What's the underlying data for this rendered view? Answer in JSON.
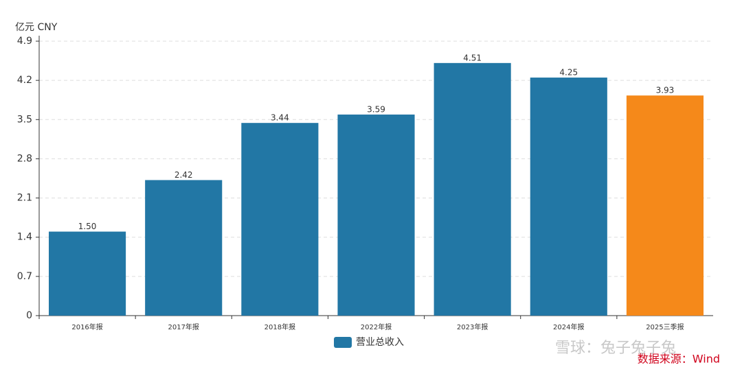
{
  "chart_data": {
    "type": "bar",
    "y_unit": "亿元  CNY",
    "categories": [
      "2016年报",
      "2017年报",
      "2018年报",
      "2022年报",
      "2023年报",
      "2024年报",
      "2025三季报"
    ],
    "series": [
      {
        "name": "营业总收入",
        "color": "#2277a5",
        "values": [
          1.5,
          2.42,
          3.44,
          3.59,
          4.51,
          4.25,
          3.93
        ],
        "value_labels": [
          "1.50",
          "2.42",
          "3.44",
          "3.59",
          "4.51",
          "4.25",
          "3.93"
        ],
        "colors": [
          "#2277a5",
          "#2277a5",
          "#2277a5",
          "#2277a5",
          "#2277a5",
          "#2277a5",
          "#f5891a"
        ]
      }
    ],
    "ylim": [
      0,
      4.9
    ],
    "yticks": [
      0,
      0.7,
      1.4,
      2.1,
      2.8,
      3.5,
      4.2,
      4.9
    ],
    "grid": true,
    "source": "数据来源：Wind",
    "watermark": "雪球：兔子兔子兔"
  }
}
